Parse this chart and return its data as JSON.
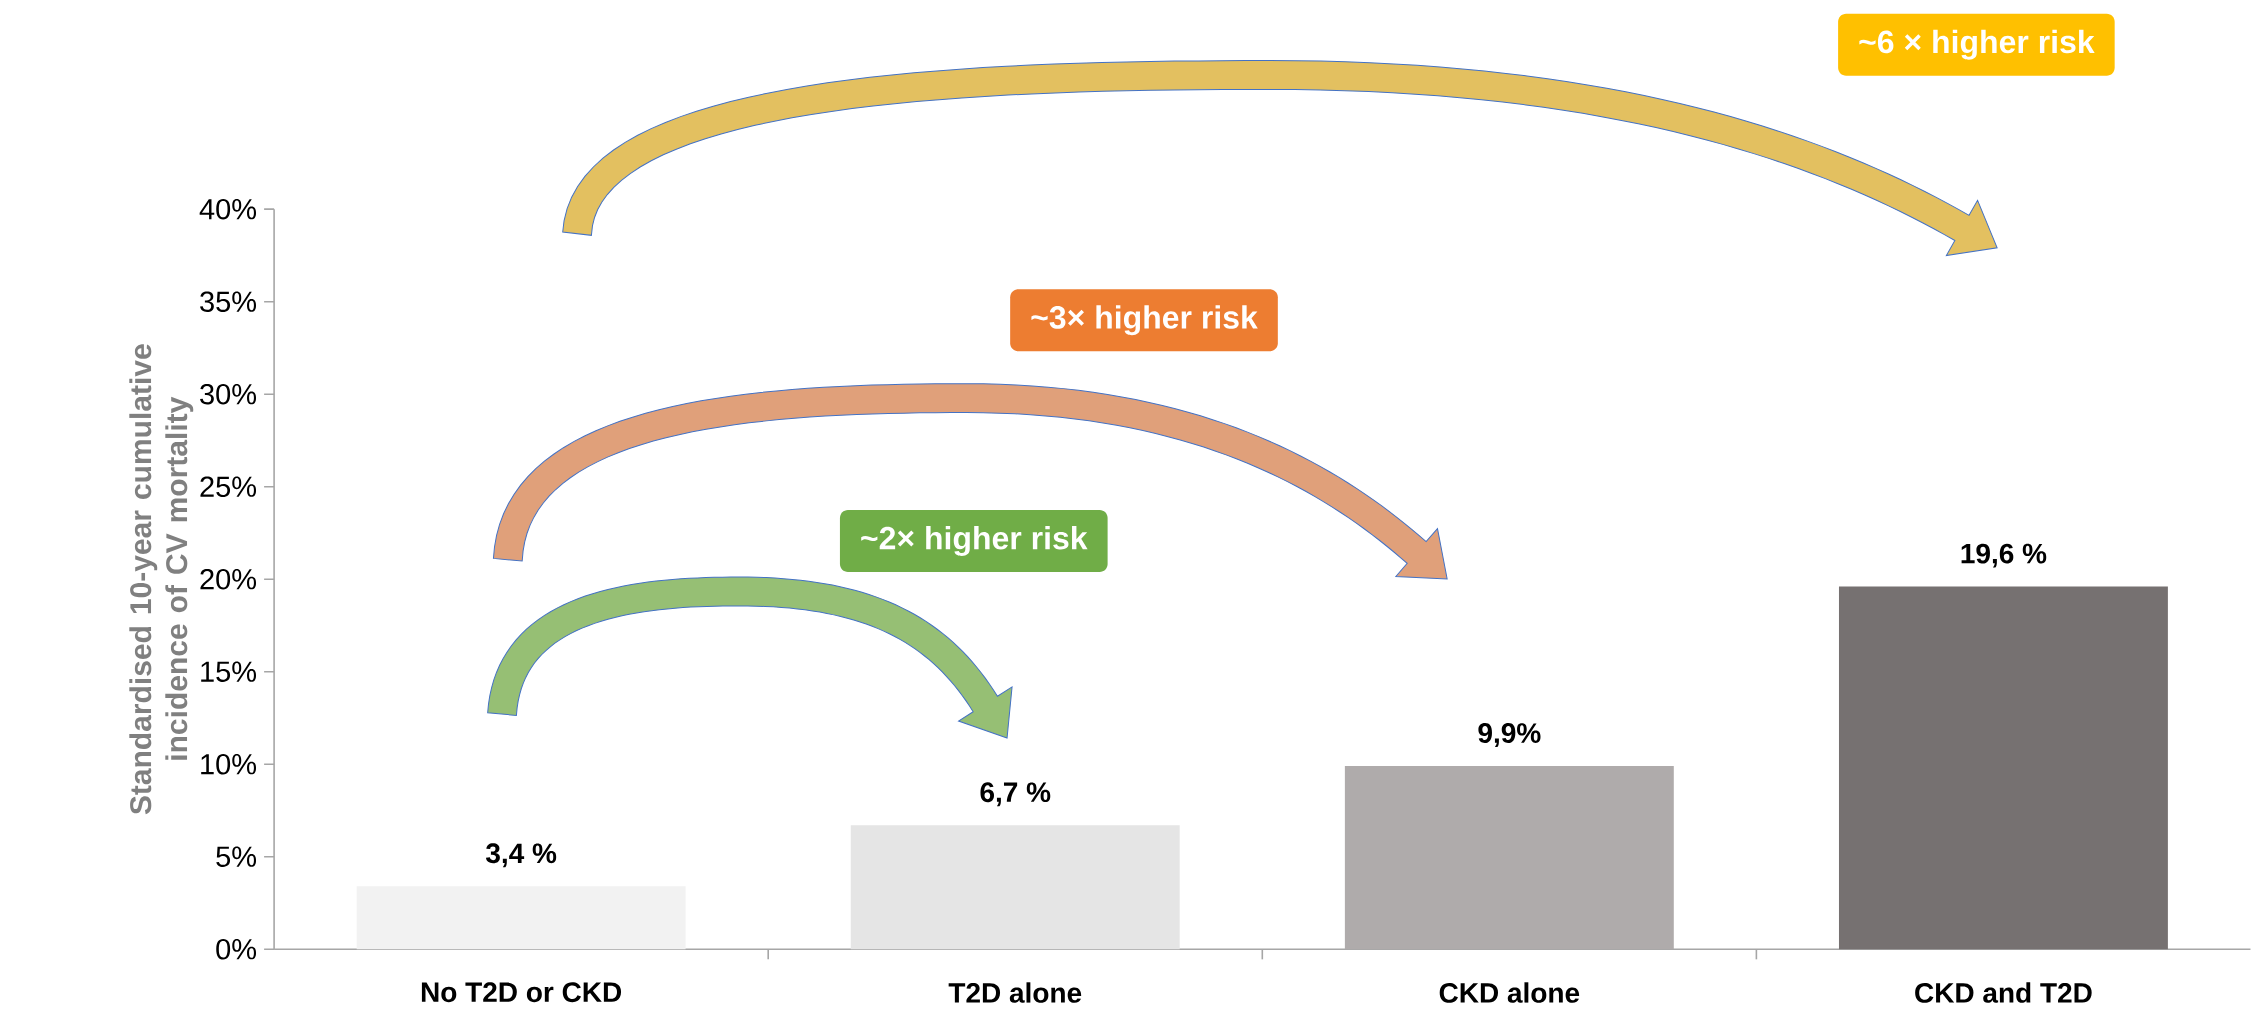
{
  "chart_data": {
    "type": "bar",
    "ylabel": "Standardised 10-year cumulative incidence of CV mortality",
    "categories": [
      "No T2D or CKD",
      "T2D alone",
      "CKD alone",
      "CKD and T2D"
    ],
    "values": [
      3.4,
      6.7,
      9.9,
      19.6
    ],
    "colors": [
      "#f2f2f2",
      "#e5e5e5",
      "#afabab",
      "#767171"
    ],
    "value_labels": [
      "3,4 %",
      "6,7 %",
      "9,9%",
      "19,6 %"
    ],
    "ylim": [
      0,
      40
    ],
    "yticks": [
      {
        "value": 0,
        "label": "0%"
      },
      {
        "value": 5,
        "label": "5%"
      },
      {
        "value": 10,
        "label": "10%"
      },
      {
        "value": 15,
        "label": "15%"
      },
      {
        "value": 20,
        "label": "20%"
      },
      {
        "value": 25,
        "label": "25%"
      },
      {
        "value": 30,
        "label": "30%"
      },
      {
        "value": 35,
        "label": "35%"
      },
      {
        "value": 40,
        "label": "40%"
      }
    ],
    "annotations": [
      "~6 × higher risk",
      "~3× higher risk",
      "~2× higher risk"
    ]
  }
}
